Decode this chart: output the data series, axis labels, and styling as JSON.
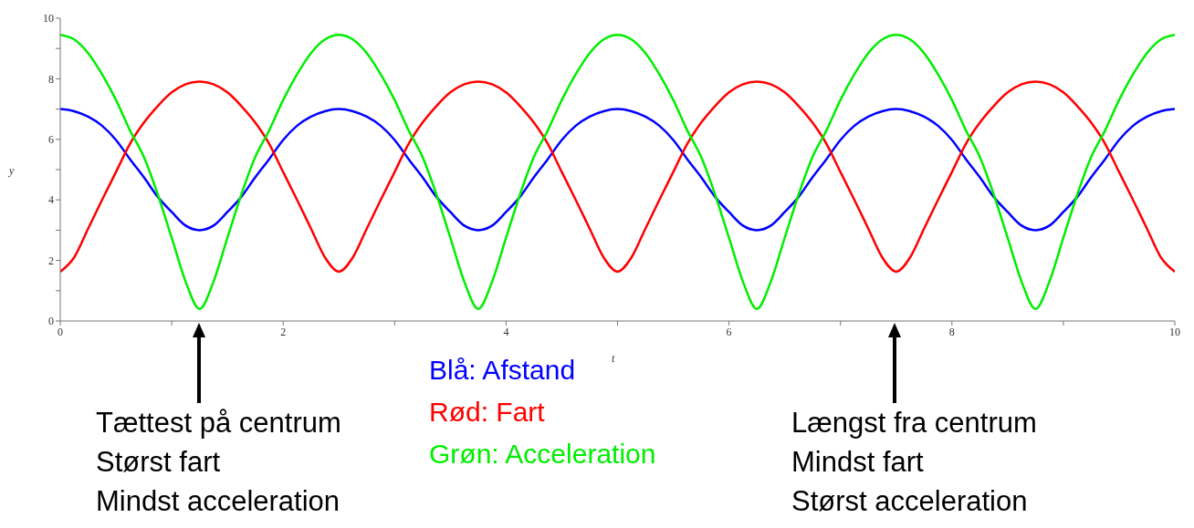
{
  "chart_data": {
    "type": "line",
    "xlabel": "t",
    "ylabel": "y",
    "x": [
      0,
      0.125,
      0.25,
      0.375,
      0.5,
      0.625,
      0.75,
      0.875,
      1,
      1.125,
      1.25,
      1.375,
      1.5,
      1.625,
      1.75,
      1.875,
      2,
      2.125,
      2.25,
      2.375,
      2.5,
      2.625,
      2.75,
      2.875,
      3,
      3.125,
      3.25,
      3.375,
      3.5,
      3.625,
      3.75,
      3.875,
      4,
      4.125,
      4.25,
      4.375,
      4.5,
      4.625,
      4.75,
      4.875,
      5,
      5.125,
      5.25,
      5.375,
      5.5,
      5.625,
      5.75,
      5.875,
      6,
      6.125,
      6.25,
      6.375,
      6.5,
      6.625,
      6.75,
      6.875,
      7,
      7.125,
      7.25,
      7.375,
      7.5,
      7.625,
      7.75,
      7.875,
      8,
      8.125,
      8.25,
      8.375,
      8.5,
      8.625,
      8.75,
      8.875,
      9,
      9.125,
      9.25,
      9.375,
      9.5,
      9.625,
      9.75,
      9.875,
      10
    ],
    "series": [
      {
        "name": "Blå: Afstand",
        "color": "#0000ff",
        "values": [
          7.0,
          6.93,
          6.75,
          6.45,
          5.98,
          5.35,
          4.75,
          4.1,
          3.6,
          3.15,
          3.0,
          3.15,
          3.6,
          4.1,
          4.75,
          5.35,
          5.98,
          6.45,
          6.75,
          6.93,
          7.0,
          6.93,
          6.75,
          6.45,
          5.98,
          5.35,
          4.75,
          4.1,
          3.6,
          3.15,
          3.0,
          3.15,
          3.6,
          4.1,
          4.75,
          5.35,
          5.98,
          6.45,
          6.75,
          6.93,
          7.0,
          6.93,
          6.75,
          6.45,
          5.98,
          5.35,
          4.75,
          4.1,
          3.6,
          3.15,
          3.0,
          3.15,
          3.6,
          4.1,
          4.75,
          5.35,
          5.98,
          6.45,
          6.75,
          6.93,
          7.0,
          6.93,
          6.75,
          6.45,
          5.98,
          5.35,
          4.75,
          4.1,
          3.6,
          3.15,
          3.0,
          3.15,
          3.6,
          4.1,
          4.75,
          5.35,
          5.98,
          6.45,
          6.75,
          6.93,
          7.0
        ]
      },
      {
        "name": "Rød: Fart",
        "color": "#ff0000",
        "values": [
          1.63,
          2.1,
          3.05,
          4.0,
          4.92,
          5.85,
          6.55,
          7.1,
          7.55,
          7.82,
          7.91,
          7.82,
          7.55,
          7.1,
          6.55,
          5.85,
          4.92,
          4.0,
          3.05,
          2.1,
          1.63,
          2.1,
          3.05,
          4.0,
          4.92,
          5.85,
          6.55,
          7.1,
          7.55,
          7.82,
          7.91,
          7.82,
          7.55,
          7.1,
          6.55,
          5.85,
          4.92,
          4.0,
          3.05,
          2.1,
          1.63,
          2.1,
          3.05,
          4.0,
          4.92,
          5.85,
          6.55,
          7.1,
          7.55,
          7.82,
          7.91,
          7.82,
          7.55,
          7.1,
          6.55,
          5.85,
          4.92,
          4.0,
          3.05,
          2.1,
          1.63,
          2.1,
          3.05,
          4.0,
          4.92,
          5.85,
          6.55,
          7.1,
          7.55,
          7.82,
          7.91,
          7.82,
          7.55,
          7.1,
          6.55,
          5.85,
          4.92,
          4.0,
          3.05,
          2.1,
          1.63
        ]
      },
      {
        "name": "Grøn: Acceleration",
        "color": "#00ee00",
        "values": [
          9.45,
          9.3,
          8.85,
          8.15,
          7.3,
          6.3,
          5.42,
          4.18,
          2.75,
          1.3,
          0.4,
          1.3,
          2.75,
          4.18,
          5.42,
          6.3,
          7.3,
          8.15,
          8.85,
          9.3,
          9.45,
          9.3,
          8.85,
          8.15,
          7.3,
          6.3,
          5.42,
          4.18,
          2.75,
          1.3,
          0.4,
          1.3,
          2.75,
          4.18,
          5.42,
          6.3,
          7.3,
          8.15,
          8.85,
          9.3,
          9.45,
          9.3,
          8.85,
          8.15,
          7.3,
          6.3,
          5.42,
          4.18,
          2.75,
          1.3,
          0.4,
          1.3,
          2.75,
          4.18,
          5.42,
          6.3,
          7.3,
          8.15,
          8.85,
          9.3,
          9.45,
          9.3,
          8.85,
          8.15,
          7.3,
          6.3,
          5.42,
          4.18,
          2.75,
          1.3,
          0.4,
          1.3,
          2.75,
          4.18,
          5.42,
          6.3,
          7.3,
          8.15,
          8.85,
          9.3,
          9.45
        ]
      }
    ],
    "xlim": [
      0,
      10
    ],
    "xticks": [
      0,
      {
        "value": 1,
        "label": null
      },
      2,
      {
        "value": 3,
        "label": null
      },
      4,
      {
        "value": 5,
        "label": null
      },
      6,
      {
        "value": 7,
        "label": null
      },
      8,
      {
        "value": 9,
        "label": null
      },
      10
    ],
    "ylim": [
      0,
      10
    ],
    "yticks": [
      0,
      {
        "value": 1,
        "label": null
      },
      2,
      {
        "value": 3,
        "label": null
      },
      4,
      {
        "value": 5,
        "label": null
      },
      6,
      {
        "value": 7,
        "label": null
      },
      8,
      {
        "value": 9,
        "label": null
      },
      10
    ],
    "grid": false,
    "legend": "bottom",
    "marker": "none",
    "line_style": "solid",
    "annotations": [
      "Tættest på centrum\nStørst fart\nMindst acceleration",
      "Længst fra centrum\nMindst fart\nStørst acceleration"
    ]
  }
}
